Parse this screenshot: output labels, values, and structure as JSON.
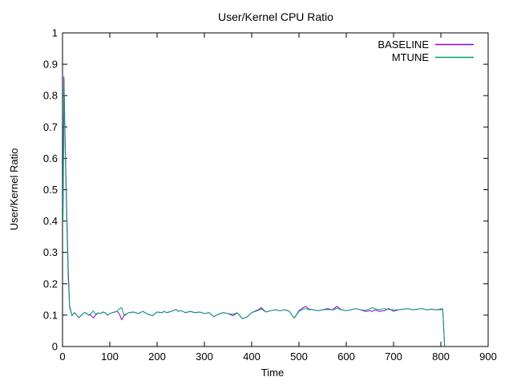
{
  "page": {
    "background": "#ffffff",
    "text_color": "#000000",
    "axis_color": "#000000"
  },
  "chart_data": {
    "type": "line",
    "title": "User/Kernel CPU Ratio",
    "xlabel": "Time",
    "ylabel": "User/Kernel Ratio",
    "xlim": [
      0,
      900
    ],
    "ylim": [
      0,
      1
    ],
    "xticks": [
      0,
      100,
      200,
      300,
      400,
      500,
      600,
      700,
      800,
      900
    ],
    "xtick_labels": [
      "0",
      "100",
      "200",
      "300",
      "400",
      "500",
      "600",
      "700",
      "800",
      "900"
    ],
    "yticks": [
      0,
      0.1,
      0.2,
      0.3,
      0.4,
      0.5,
      0.6,
      0.7,
      0.8,
      0.9,
      1
    ],
    "ytick_labels": [
      "0",
      "0.1",
      "0.2",
      "0.3",
      "0.4",
      "0.5",
      "0.6",
      "0.7",
      "0.8",
      "0.9",
      "1"
    ],
    "grid": false,
    "legend_position": "top-right-inside",
    "x": [
      1,
      3,
      5,
      7,
      9,
      12,
      15,
      20,
      25,
      30,
      35,
      40,
      45,
      50,
      55,
      60,
      65,
      70,
      75,
      80,
      85,
      90,
      95,
      100,
      110,
      115,
      120,
      125,
      130,
      140,
      150,
      160,
      170,
      180,
      190,
      200,
      210,
      215,
      220,
      230,
      240,
      245,
      250,
      260,
      270,
      280,
      290,
      300,
      310,
      320,
      330,
      340,
      350,
      360,
      370,
      380,
      390,
      400,
      410,
      415,
      420,
      430,
      440,
      450,
      460,
      470,
      480,
      485,
      490,
      500,
      510,
      515,
      520,
      530,
      540,
      550,
      560,
      570,
      575,
      580,
      590,
      600,
      610,
      620,
      630,
      640,
      650,
      655,
      660,
      670,
      680,
      690,
      700,
      710,
      720,
      730,
      740,
      750,
      760,
      770,
      780,
      790,
      800,
      804,
      808
    ],
    "series": [
      {
        "name": "BASELINE",
        "color": "#9400d3",
        "values": [
          0.44,
          0.86,
          0.7,
          0.56,
          0.43,
          0.25,
          0.13,
          0.098,
          0.108,
          0.1,
          0.092,
          0.1,
          0.107,
          0.107,
          0.1,
          0.1,
          0.091,
          0.1,
          0.107,
          0.105,
          0.11,
          0.108,
          0.1,
          0.105,
          0.11,
          0.112,
          0.105,
          0.085,
          0.098,
          0.108,
          0.11,
          0.105,
          0.112,
          0.103,
          0.098,
          0.11,
          0.108,
          0.112,
          0.108,
          0.112,
          0.118,
          0.112,
          0.115,
          0.108,
          0.112,
          0.108,
          0.11,
          0.105,
          0.108,
          0.095,
          0.103,
          0.108,
          0.105,
          0.098,
          0.107,
          0.089,
          0.094,
          0.108,
          0.115,
          0.118,
          0.124,
          0.11,
          0.114,
          0.117,
          0.114,
          0.117,
          0.112,
          0.1,
          0.091,
          0.114,
          0.125,
          0.128,
          0.12,
          0.117,
          0.114,
          0.117,
          0.121,
          0.117,
          0.122,
          0.128,
          0.117,
          0.114,
          0.117,
          0.121,
          0.117,
          0.112,
          0.114,
          0.112,
          0.117,
          0.112,
          0.114,
          0.121,
          0.112,
          0.117,
          0.119,
          0.121,
          0.117,
          0.119,
          0.121,
          0.117,
          0.119,
          0.117,
          0.118,
          0.118,
          0.0
        ]
      },
      {
        "name": "MTUNE",
        "color": "#009e73",
        "values": [
          0.4,
          0.84,
          0.67,
          0.53,
          0.4,
          0.22,
          0.125,
          0.098,
          0.108,
          0.1,
          0.092,
          0.1,
          0.107,
          0.107,
          0.1,
          0.105,
          0.113,
          0.103,
          0.107,
          0.105,
          0.11,
          0.108,
          0.1,
          0.105,
          0.11,
          0.112,
          0.12,
          0.124,
          0.1,
          0.108,
          0.11,
          0.105,
          0.112,
          0.103,
          0.098,
          0.11,
          0.108,
          0.112,
          0.108,
          0.112,
          0.118,
          0.112,
          0.115,
          0.108,
          0.112,
          0.108,
          0.11,
          0.105,
          0.108,
          0.095,
          0.103,
          0.108,
          0.105,
          0.103,
          0.107,
          0.089,
          0.094,
          0.108,
          0.113,
          0.116,
          0.12,
          0.11,
          0.114,
          0.117,
          0.114,
          0.117,
          0.112,
          0.1,
          0.091,
          0.112,
          0.12,
          0.121,
          0.118,
          0.117,
          0.114,
          0.117,
          0.118,
          0.117,
          0.118,
          0.122,
          0.117,
          0.114,
          0.117,
          0.121,
          0.117,
          0.115,
          0.12,
          0.124,
          0.121,
          0.117,
          0.121,
          0.118,
          0.117,
          0.117,
          0.119,
          0.121,
          0.117,
          0.119,
          0.121,
          0.117,
          0.119,
          0.117,
          0.12,
          0.12,
          0.0
        ]
      }
    ]
  }
}
